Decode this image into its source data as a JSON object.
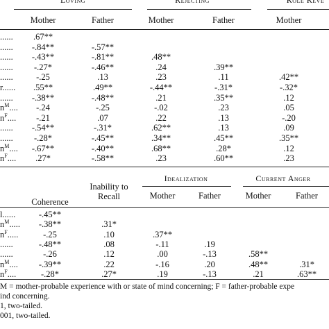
{
  "top_table": {
    "groups": [
      "Loving",
      "Rejecting",
      "Role Reve"
    ],
    "columns": [
      "Mother",
      "Father",
      "Mother",
      "Father",
      "Mother"
    ],
    "row_labels": [
      {
        "base": "",
        "leader": "......"
      },
      {
        "base": "",
        "leader": "......"
      },
      {
        "base": "",
        "leader": "......"
      },
      {
        "base": "",
        "leader": "......"
      },
      {
        "base": "",
        "leader": "......"
      },
      {
        "base": "",
        "leader": "r......"
      },
      {
        "base": "",
        "leader": "......"
      },
      {
        "base": "n",
        "sup": "M",
        "leader": "...."
      },
      {
        "base": "n",
        "sup": "F",
        "leader": "...."
      },
      {
        "base": "",
        "leader": "......"
      },
      {
        "base": "",
        "leader": "......"
      },
      {
        "base": "n",
        "sup": "M",
        "leader": "...."
      },
      {
        "base": "n",
        "sup": "F",
        "leader": "...."
      }
    ],
    "rows": [
      [
        ".67**"
      ],
      [
        "-.84**",
        "-.57**"
      ],
      [
        "-.43**",
        "-.81**",
        ".48**"
      ],
      [
        "-.27*",
        "-.46**",
        ".24",
        ".39**"
      ],
      [
        "-.25",
        ".13",
        ".23",
        ".11",
        ".42**"
      ],
      [
        ".55**",
        ".49**",
        "-.44**",
        "-.31*",
        "-.32*"
      ],
      [
        "-.38**",
        "-.48**",
        ".21",
        ".35**",
        ".12"
      ],
      [
        "-.24",
        "-.25",
        "-.02",
        ".23",
        ".05"
      ],
      [
        "-.21",
        ".07",
        ".22",
        ".13",
        "-.20"
      ],
      [
        "-.54**",
        "-.31*",
        ".62**",
        ".13",
        ".09"
      ],
      [
        "-.28*",
        "-.45**",
        ".34**",
        ".45**",
        ".35**"
      ],
      [
        "-.67**",
        "-.40**",
        ".68**",
        ".28*",
        ".12"
      ],
      [
        ".27*",
        "-.58**",
        ".23",
        ".60**",
        ".23"
      ]
    ]
  },
  "bottom_table": {
    "single_columns": [
      "Coherence",
      "Inability to Recall"
    ],
    "groups": [
      "Idealization",
      "Current Anger"
    ],
    "sub_columns": [
      "Mother",
      "Father",
      "Mother",
      "Father"
    ],
    "row_labels": [
      {
        "base": "l",
        "leader": "......"
      },
      {
        "base": "n",
        "sup": "M",
        "leader": "....."
      },
      {
        "base": "n",
        "sup": "F",
        "leader": "....."
      },
      {
        "base": "",
        "leader": "......"
      },
      {
        "base": "",
        "leader": "......"
      },
      {
        "base": "n",
        "sup": "M",
        "leader": "...."
      },
      {
        "base": "n",
        "sup": "F",
        "leader": "...."
      }
    ],
    "rows": [
      [
        "-.45**"
      ],
      [
        "-.38**",
        ".31*"
      ],
      [
        "-.25",
        ".10",
        ".37**"
      ],
      [
        "-.48**",
        ".08",
        "-.11",
        ".19"
      ],
      [
        "-.26",
        ".12",
        ".00",
        "-.13",
        ".58**"
      ],
      [
        "-.39**",
        ".22",
        "-.16",
        ".20",
        ".48**",
        ".31*"
      ],
      [
        "-.28*",
        ".27*",
        ".19",
        "-.13",
        ".21",
        ".63**"
      ]
    ]
  },
  "footnotes": [
    "M = mother-probable experience with or state of mind concerning; F = father-probable expe",
    "ind concerning.",
    "1, two-tailed.",
    "001, two-tailed."
  ]
}
